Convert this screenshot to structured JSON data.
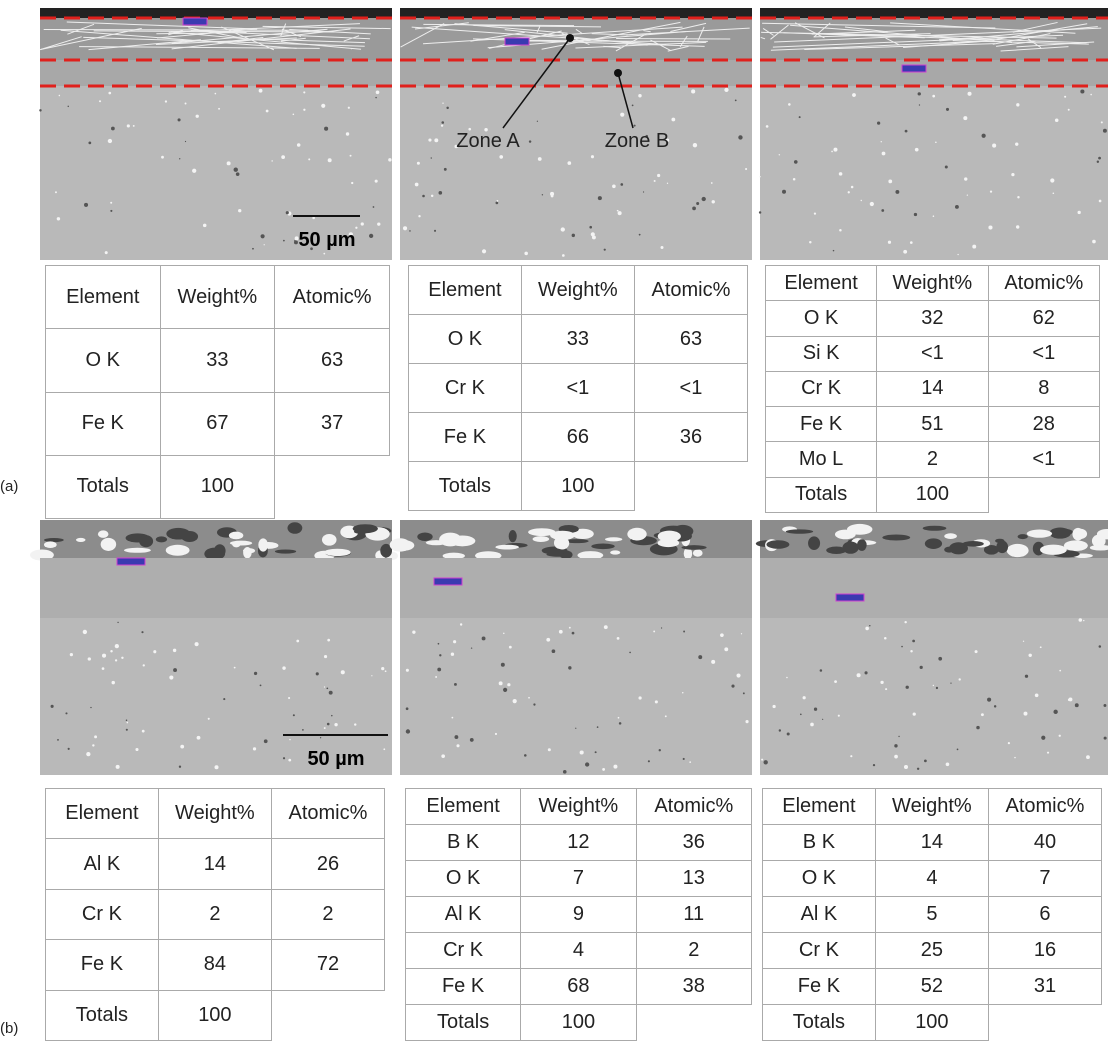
{
  "panels": [
    {
      "label": "(a)",
      "scale_bar": "50 µm",
      "zones": [
        "Zone A",
        "Zone B"
      ],
      "tables": [
        {
          "header": [
            "Element",
            "Weight%",
            "Atomic%"
          ],
          "rows": [
            [
              "O K",
              "33",
              "63"
            ],
            [
              "Fe K",
              "67",
              "37"
            ],
            [
              "Totals",
              "100"
            ]
          ]
        },
        {
          "header": [
            "Element",
            "Weight%",
            "Atomic%"
          ],
          "rows": [
            [
              "O K",
              "33",
              "63"
            ],
            [
              "Cr K",
              "<1",
              "<1"
            ],
            [
              "Fe K",
              "66",
              "36"
            ],
            [
              "Totals",
              "100"
            ]
          ]
        },
        {
          "header": [
            "Element",
            "Weight%",
            "Atomic%"
          ],
          "rows": [
            [
              "O K",
              "32",
              "62"
            ],
            [
              "Si K",
              "<1",
              "<1"
            ],
            [
              "Cr K",
              "14",
              "8"
            ],
            [
              "Fe K",
              "51",
              "28"
            ],
            [
              "Mo L",
              "2",
              "<1"
            ],
            [
              "Totals",
              "100"
            ]
          ]
        }
      ]
    },
    {
      "label": "(b)",
      "scale_bar": "50 µm",
      "tables": [
        {
          "header": [
            "Element",
            "Weight%",
            "Atomic%"
          ],
          "rows": [
            [
              "Al K",
              "14",
              "26"
            ],
            [
              "Cr K",
              "2",
              "2"
            ],
            [
              "Fe K",
              "84",
              "72"
            ],
            [
              "Totals",
              "100"
            ]
          ]
        },
        {
          "header": [
            "Element",
            "Weight%",
            "Atomic%"
          ],
          "rows": [
            [
              "B K",
              "12",
              "36"
            ],
            [
              "O K",
              "7",
              "13"
            ],
            [
              "Al K",
              "9",
              "11"
            ],
            [
              "Cr K",
              "4",
              "2"
            ],
            [
              "Fe K",
              "68",
              "38"
            ],
            [
              "Totals",
              "100"
            ]
          ]
        },
        {
          "header": [
            "Element",
            "Weight%",
            "Atomic%"
          ],
          "rows": [
            [
              "B K",
              "14",
              "40"
            ],
            [
              "O K",
              "4",
              "7"
            ],
            [
              "Al K",
              "5",
              "6"
            ],
            [
              "Cr K",
              "25",
              "16"
            ],
            [
              "Fe K",
              "52",
              "31"
            ],
            [
              "Totals",
              "100"
            ]
          ]
        }
      ]
    }
  ]
}
